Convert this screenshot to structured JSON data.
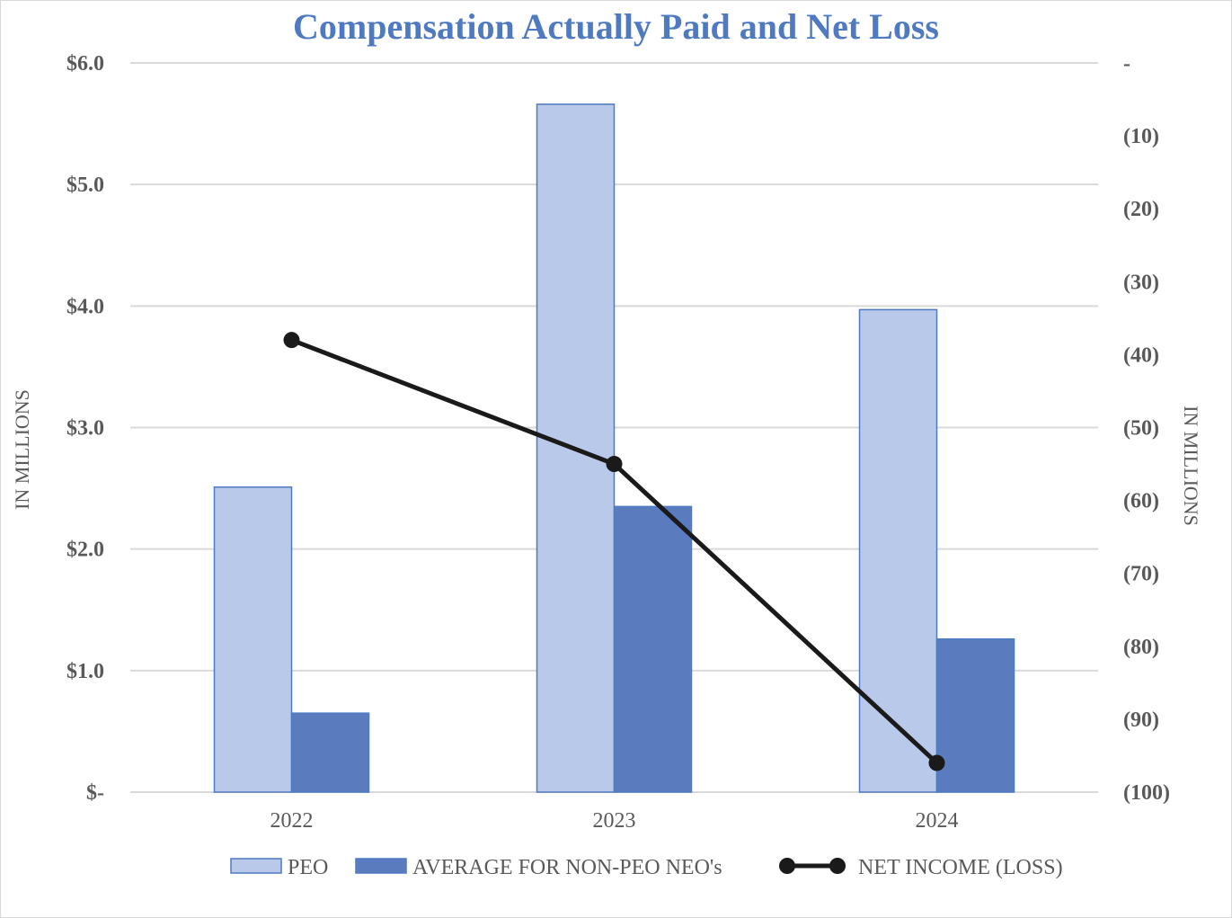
{
  "chart_data": {
    "type": "bar",
    "title": "Compensation Actually Paid and Net Loss",
    "categories": [
      "2022",
      "2023",
      "2024"
    ],
    "series": [
      {
        "name": "PEO",
        "type": "bar",
        "axis": "left",
        "values": [
          2.51,
          5.66,
          3.97
        ],
        "color": "#b9c9ea"
      },
      {
        "name": "AVERAGE FOR NON-PEO NEO's",
        "type": "bar",
        "axis": "left",
        "values": [
          0.65,
          2.35,
          1.26
        ],
        "color": "#5a7cbf"
      },
      {
        "name": "NET INCOME (LOSS)",
        "type": "line",
        "axis": "right",
        "values": [
          -38,
          -55,
          -96
        ],
        "color": "#1a1a1a"
      }
    ],
    "y_left": {
      "label": "IN MILLIONS",
      "range": [
        0,
        6
      ],
      "ticks": [
        0,
        1,
        2,
        3,
        4,
        5,
        6
      ],
      "tick_labels": [
        "$-",
        "$1.0",
        "$2.0",
        "$3.0",
        "$4.0",
        "$5.0",
        "$6.0"
      ]
    },
    "y_right": {
      "label": "IN MILLIONS",
      "range": [
        -100,
        0
      ],
      "ticks": [
        0,
        -10,
        -20,
        -30,
        -40,
        -50,
        -60,
        -70,
        -80,
        -90,
        -100
      ],
      "tick_labels": [
        "-",
        "(10)",
        "(20)",
        "(30)",
        "(40)",
        "(50)",
        "(60)",
        "(70)",
        "(80)",
        "(90)",
        "(100)"
      ]
    },
    "grid": true,
    "legend_position": "bottom"
  },
  "colors": {
    "title": "#4f7ac2",
    "grid": "#d9d9d9",
    "text": "#595959",
    "bar_border": "#4f7ac2"
  }
}
